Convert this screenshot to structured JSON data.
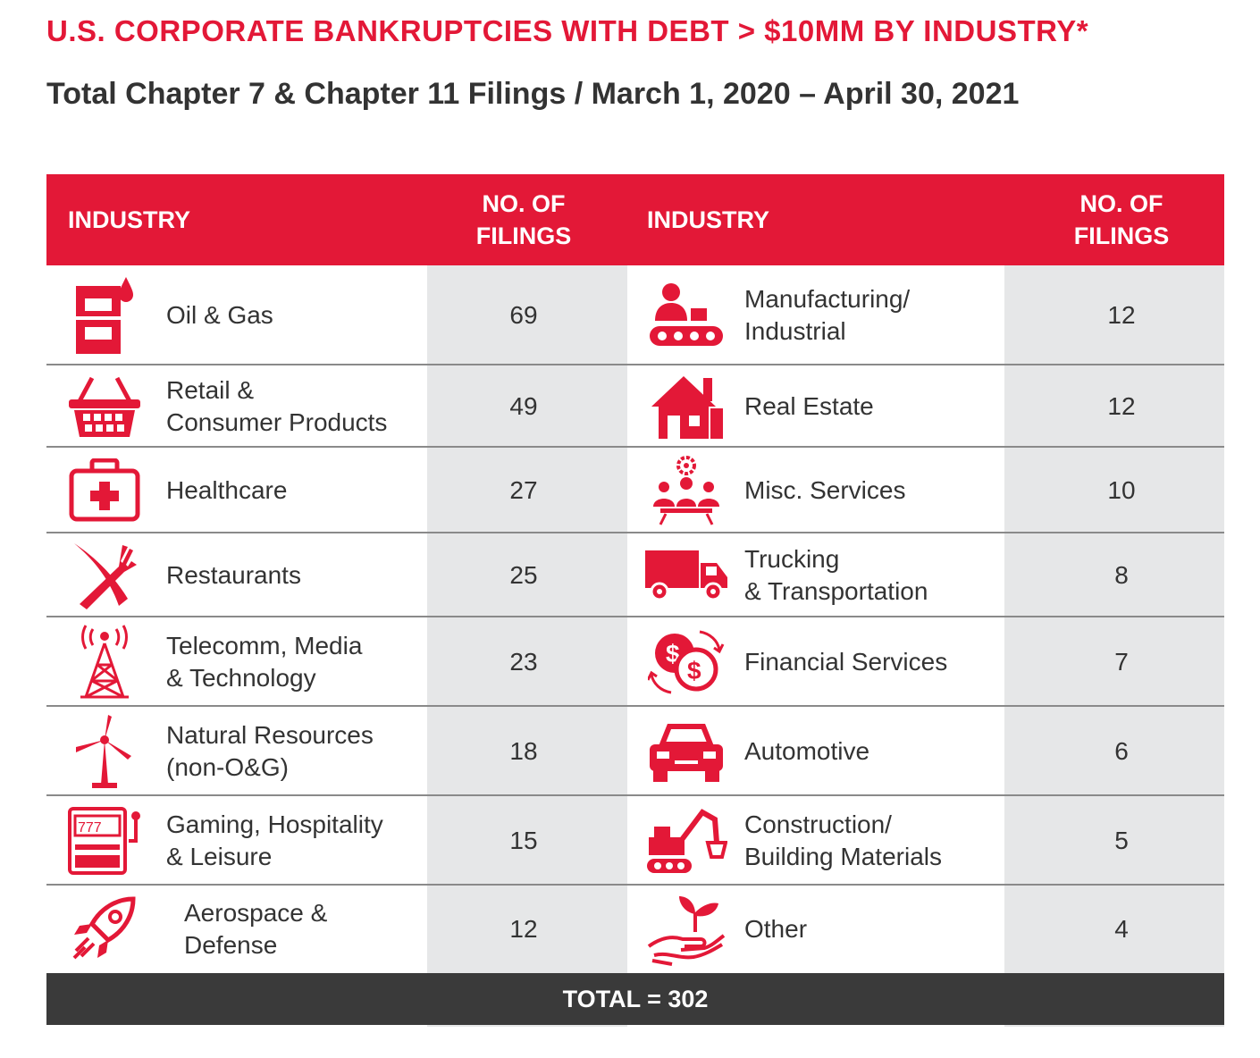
{
  "title": "U.S. CORPORATE BANKRUPTCIES WITH DEBT > $10MM BY INDUSTRY*",
  "subtitle": "Total Chapter 7 & Chapter 11 Filings / March 1, 2020 – April 30, 2021",
  "header": {
    "industry": "INDUSTRY",
    "filings": "NO. OF\nFILINGS"
  },
  "rows": [
    {
      "left": {
        "label": "Oil & Gas",
        "filings": "69",
        "icon": "oil-barrel-icon"
      },
      "right": {
        "label": "Manufacturing/\nIndustrial",
        "filings": "12",
        "icon": "conveyor-worker-icon"
      }
    },
    {
      "left": {
        "label": "Retail &\nConsumer Products",
        "filings": "49",
        "icon": "shopping-basket-icon"
      },
      "right": {
        "label": "Real Estate",
        "filings": "12",
        "icon": "house-icon"
      }
    },
    {
      "left": {
        "label": "Healthcare",
        "filings": "27",
        "icon": "first-aid-kit-icon"
      },
      "right": {
        "label": "Misc. Services",
        "filings": "10",
        "icon": "team-meeting-gear-icon"
      }
    },
    {
      "left": {
        "label": "Restaurants",
        "filings": "25",
        "icon": "fork-knife-icon"
      },
      "right": {
        "label": "Trucking\n& Transportation",
        "filings": "8",
        "icon": "truck-icon"
      }
    },
    {
      "left": {
        "label": "Telecomm, Media\n& Technology",
        "filings": "23",
        "icon": "radio-tower-icon"
      },
      "right": {
        "label": "Financial Services",
        "filings": "7",
        "icon": "currency-exchange-icon"
      }
    },
    {
      "left": {
        "label": "Natural Resources\n(non-O&G)",
        "filings": "18",
        "icon": "wind-turbine-icon"
      },
      "right": {
        "label": "Automotive",
        "filings": "6",
        "icon": "car-icon"
      }
    },
    {
      "left": {
        "label": "Gaming, Hospitality\n& Leisure",
        "filings": "15",
        "icon": "slot-machine-icon"
      },
      "right": {
        "label": "Construction/\nBuilding Materials",
        "filings": "5",
        "icon": "excavator-icon"
      }
    },
    {
      "left": {
        "label": "Aerospace &\nDefense",
        "filings": "12",
        "icon": "rocket-icon"
      },
      "right": {
        "label": "Other",
        "filings": "4",
        "icon": "hand-sprout-icon"
      }
    }
  ],
  "total": "TOTAL = 302",
  "colors": {
    "accent": "#e31837",
    "gray": "#e6e7e8",
    "dark": "#3a3a3a",
    "text": "#333333"
  }
}
